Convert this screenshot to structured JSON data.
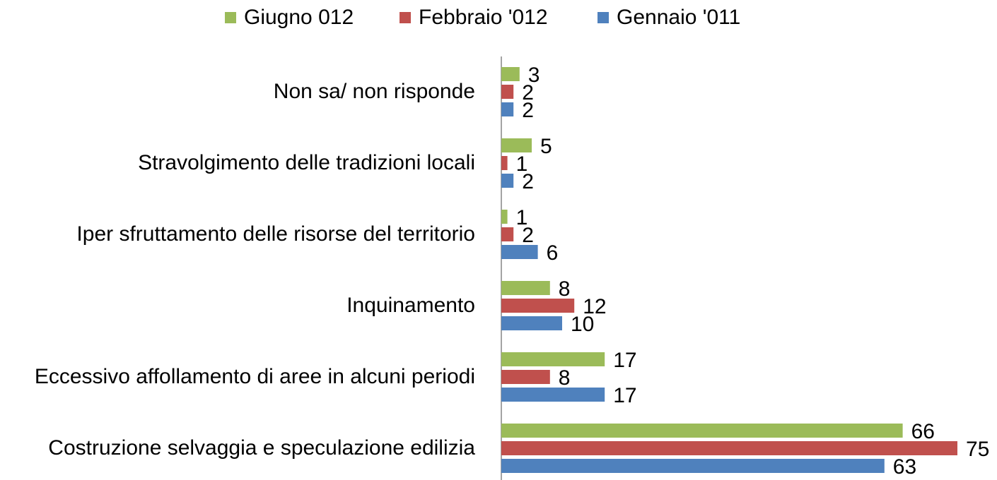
{
  "chart_data": {
    "type": "hbar",
    "categories": [
      "Non sa/ non risponde",
      "Stravolgimento delle tradizioni locali",
      "Iper sfruttamento delle risorse del territorio",
      "Inquinamento",
      "Eccessivo affollamento di aree in alcuni periodi",
      "Costruzione selvaggia e speculazione edilizia"
    ],
    "series": [
      {
        "name": "Giugno 012",
        "color": "#9bbb59",
        "values": [
          3,
          5,
          1,
          8,
          17,
          66
        ]
      },
      {
        "name": "Febbraio '012",
        "color": "#c0504d",
        "values": [
          2,
          1,
          2,
          12,
          8,
          75
        ]
      },
      {
        "name": "Gennaio '011",
        "color": "#4f81bd",
        "values": [
          2,
          2,
          6,
          10,
          17,
          63
        ]
      }
    ],
    "xlim": [
      0,
      80
    ],
    "legend": "top",
    "grid": false
  }
}
